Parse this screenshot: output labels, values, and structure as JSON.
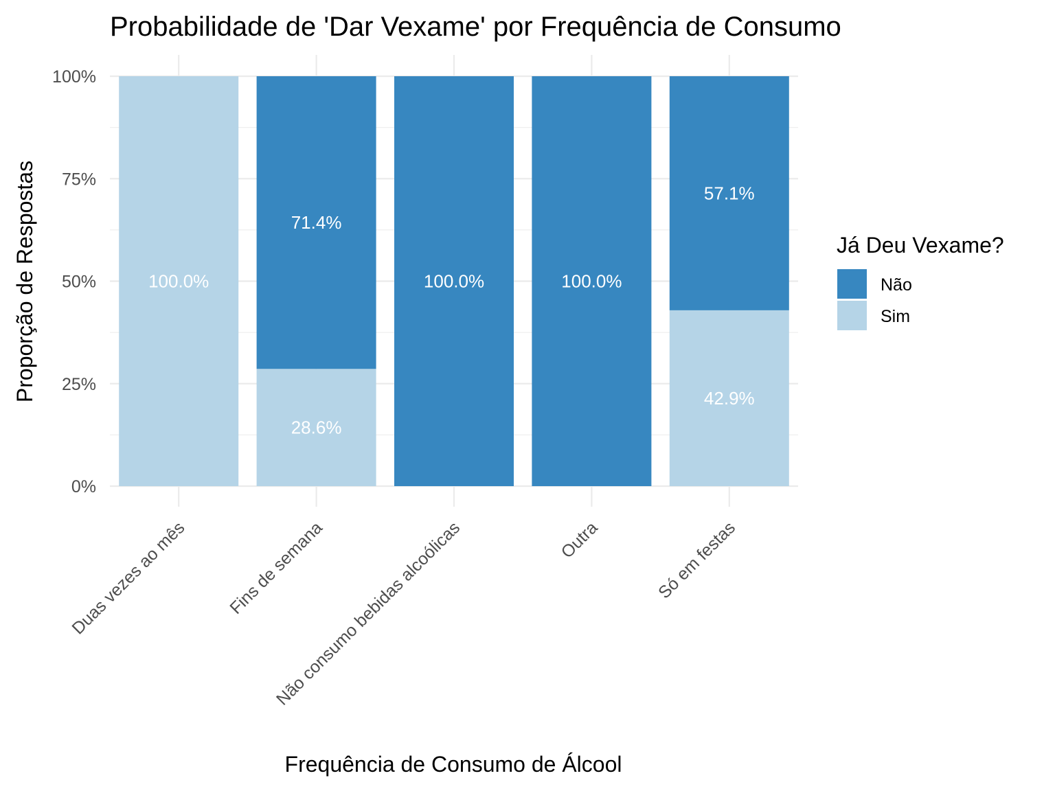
{
  "chart_data": {
    "type": "bar",
    "stacked": true,
    "normalized": true,
    "title": "Probabilidade de 'Dar Vexame' por Frequência de Consumo",
    "xlabel": "Frequência de Consumo de Álcool",
    "ylabel": "Proporção de Respostas",
    "ylim": [
      0,
      1
    ],
    "y_ticks": [
      0,
      0.25,
      0.5,
      0.75,
      1
    ],
    "y_tick_labels": [
      "0%",
      "25%",
      "50%",
      "75%",
      "100%"
    ],
    "grid": true,
    "categories": [
      "Duas vezes ao mês",
      "Fins de semana",
      "Não consumo bebidas alcoólicas",
      "Outra",
      "Só em festas"
    ],
    "series": [
      {
        "name": "Não",
        "color": "#3787c0",
        "values": [
          0,
          0.714,
          1.0,
          1.0,
          0.571
        ],
        "labels": [
          "",
          "71.4%",
          "100.0%",
          "100.0%",
          "57.1%"
        ]
      },
      {
        "name": "Sim",
        "color": "#b5d4e7",
        "values": [
          1.0,
          0.286,
          0,
          0,
          0.429
        ],
        "labels": [
          "100.0%",
          "28.6%",
          "",
          "",
          "42.9%"
        ]
      }
    ],
    "legend": {
      "title": "Já Deu Vexame?",
      "position": "right"
    }
  }
}
